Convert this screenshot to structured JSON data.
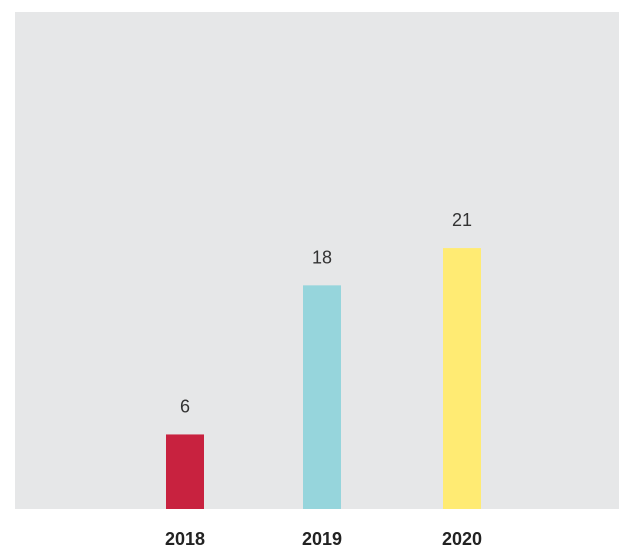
{
  "chart_data": {
    "type": "bar",
    "title": "",
    "xlabel": "",
    "ylabel": "",
    "categories": [
      "2018",
      "2019",
      "2020"
    ],
    "values": [
      6,
      18,
      21
    ],
    "colors": [
      "#c8223f",
      "#96d5dc",
      "#ffeb73"
    ],
    "background": "#e6e7e8",
    "ylim": [
      0,
      40
    ],
    "grid": false,
    "data_labels": true
  }
}
